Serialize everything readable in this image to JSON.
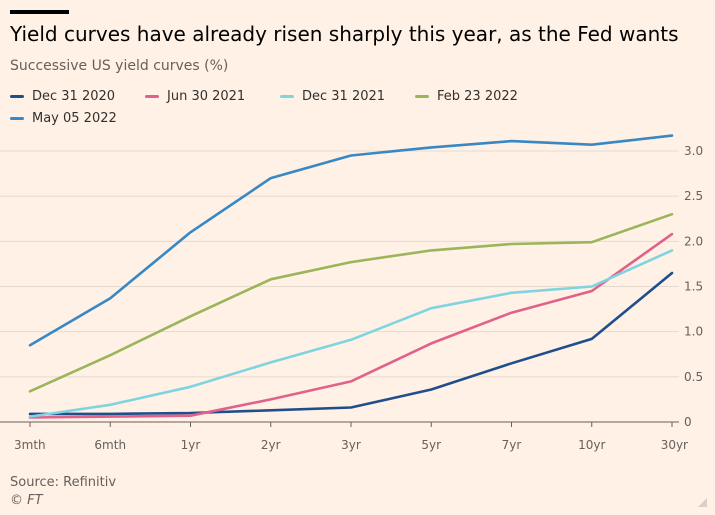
{
  "header": {
    "title": "Yield curves have already risen sharply this year, as the Fed wants",
    "subtitle": "Successive US yield curves (%)"
  },
  "footer": {
    "source": "Source: Refinitiv",
    "credit": "© FT"
  },
  "chart_data": {
    "type": "line",
    "title": "Yield curves have already risen sharply this year, as the Fed wants",
    "subtitle": "Successive US yield curves (%)",
    "xlabel": "",
    "ylabel": "",
    "categories": [
      "3mth",
      "6mth",
      "1yr",
      "2yr",
      "3yr",
      "5yr",
      "7yr",
      "10yr",
      "30yr"
    ],
    "ylim": [
      0,
      3.0
    ],
    "yticks": [
      "0",
      "0.5",
      "1.0",
      "1.5",
      "2.0",
      "2.5",
      "3.0"
    ],
    "ytick_values": [
      0,
      0.5,
      1.0,
      1.5,
      2.0,
      2.5,
      3.0
    ],
    "y_axis_side": "right",
    "grid": "horizontal",
    "legend_position": "top-left",
    "series": [
      {
        "name": "Dec 31 2020",
        "color": "#1f4e8c",
        "values": [
          0.09,
          0.09,
          0.1,
          0.13,
          0.16,
          0.36,
          0.65,
          0.92,
          1.65
        ]
      },
      {
        "name": "Jun 30 2021",
        "color": "#e0628a",
        "values": [
          0.05,
          0.06,
          0.07,
          0.25,
          0.45,
          0.87,
          1.21,
          1.45,
          2.08
        ]
      },
      {
        "name": "Dec 31 2021",
        "color": "#7fd4e0",
        "values": [
          0.06,
          0.19,
          0.39,
          0.66,
          0.91,
          1.26,
          1.43,
          1.5,
          1.9
        ]
      },
      {
        "name": "Feb 23 2022",
        "color": "#9bb55a",
        "values": [
          0.34,
          0.74,
          1.17,
          1.58,
          1.77,
          1.9,
          1.97,
          1.99,
          2.3
        ]
      },
      {
        "name": "May 05 2022",
        "color": "#3788c4",
        "values": [
          0.85,
          1.37,
          2.1,
          2.7,
          2.95,
          3.04,
          3.11,
          3.07,
          3.17
        ]
      }
    ]
  }
}
